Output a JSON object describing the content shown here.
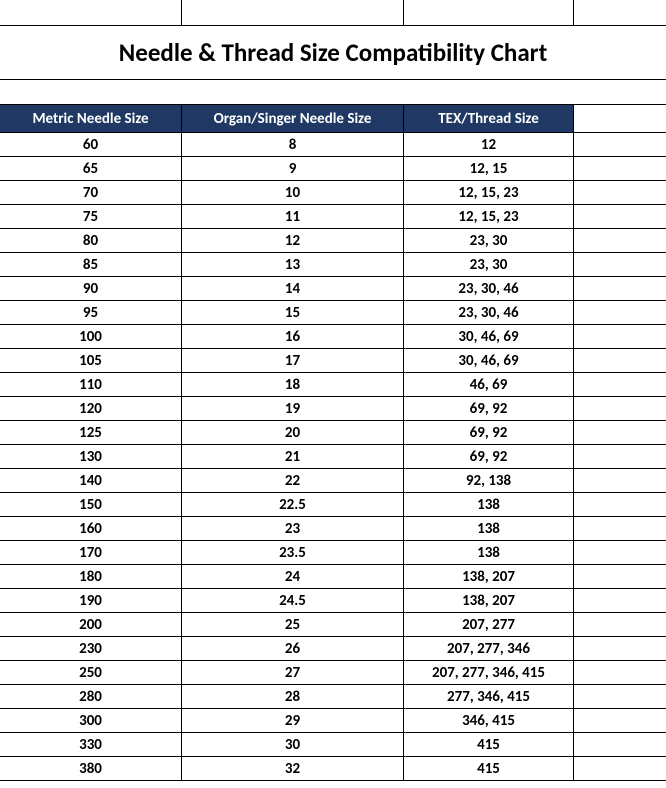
{
  "title": "Needle & Thread Size Compatibility Chart",
  "header_bg": "#1f3864",
  "header_text_color": "#ffffff",
  "columns": [
    "Metric Needle Size",
    "Organ/Singer Needle Size",
    "TEX/Thread Size"
  ],
  "rows": [
    [
      "60",
      "8",
      "12"
    ],
    [
      "65",
      "9",
      "12, 15"
    ],
    [
      "70",
      "10",
      "12, 15, 23"
    ],
    [
      "75",
      "11",
      "12, 15, 23"
    ],
    [
      "80",
      "12",
      "23, 30"
    ],
    [
      "85",
      "13",
      "23, 30"
    ],
    [
      "90",
      "14",
      "23, 30, 46"
    ],
    [
      "95",
      "15",
      "23, 30, 46"
    ],
    [
      "100",
      "16",
      "30, 46, 69"
    ],
    [
      "105",
      "17",
      "30, 46, 69"
    ],
    [
      "110",
      "18",
      "46, 69"
    ],
    [
      "120",
      "19",
      "69, 92"
    ],
    [
      "125",
      "20",
      "69, 92"
    ],
    [
      "130",
      "21",
      "69, 92"
    ],
    [
      "140",
      "22",
      "92, 138"
    ],
    [
      "150",
      "22.5",
      "138"
    ],
    [
      "160",
      "23",
      "138"
    ],
    [
      "170",
      "23.5",
      "138"
    ],
    [
      "180",
      "24",
      "138, 207"
    ],
    [
      "190",
      "24.5",
      "138, 207"
    ],
    [
      "200",
      "25",
      "207, 277"
    ],
    [
      "230",
      "26",
      "207, 277, 346"
    ],
    [
      "250",
      "27",
      "207, 277, 346, 415"
    ],
    [
      "280",
      "28",
      "277, 346, 415"
    ],
    [
      "300",
      "29",
      "346, 415"
    ],
    [
      "330",
      "30",
      "415"
    ],
    [
      "380",
      "32",
      "415"
    ]
  ]
}
